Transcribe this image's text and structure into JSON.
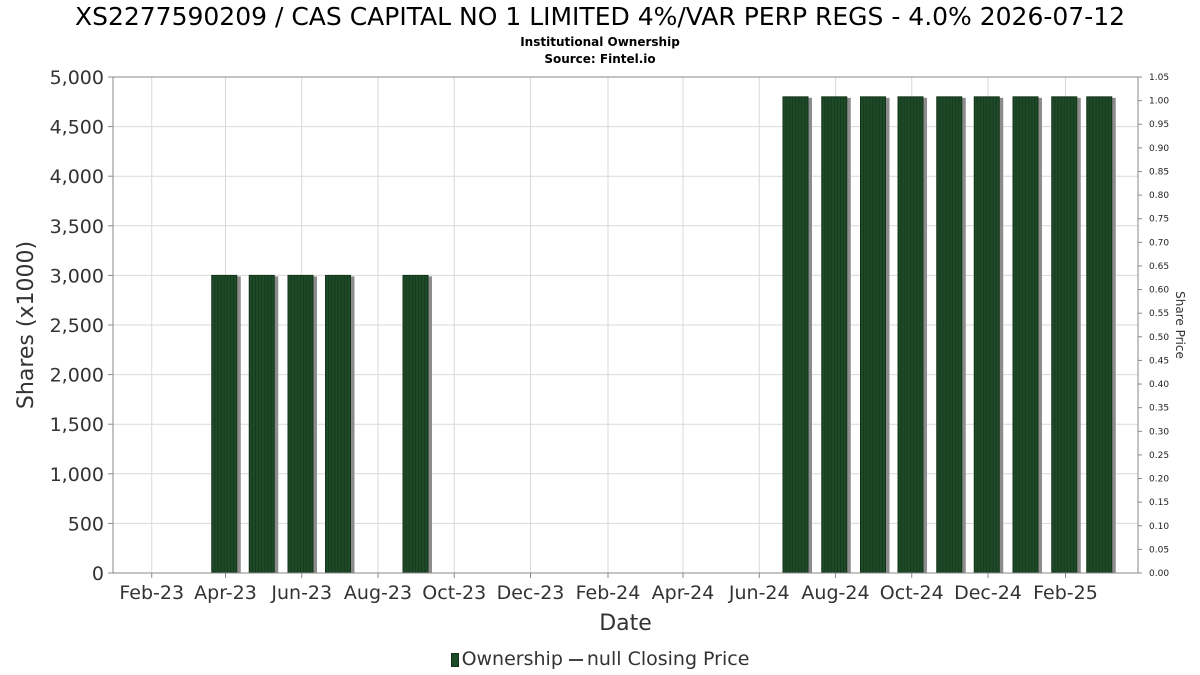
{
  "title": "XS2277590209 / CAS CAPITAL NO 1 LIMITED 4%/VAR PERP REGS - 4.0% 2026-07-12",
  "subtitle1": "Institutional Ownership",
  "subtitle2": "Source: Fintel.io",
  "legend": {
    "ownership": "Ownership",
    "closing_price": "null Closing Price"
  },
  "colors": {
    "bar": "#1f4a28",
    "bar_shadow": "#8c8c8c",
    "grid": "#d9d9d9"
  },
  "chart_data": {
    "type": "bar",
    "xlabel": "Date",
    "ylabel": "Shares (x1000)",
    "y2label": "Share Price",
    "ylim": [
      0,
      5000
    ],
    "y2lim": [
      0,
      1.05
    ],
    "grid": true,
    "legend_position": "bottom",
    "x_ticks": [
      "Feb-23",
      "Apr-23",
      "Jun-23",
      "Aug-23",
      "Oct-23",
      "Dec-23",
      "Feb-24",
      "Apr-24",
      "Jun-24",
      "Aug-24",
      "Oct-24",
      "Dec-24",
      "Feb-25"
    ],
    "y_ticks": [
      "0",
      "500",
      "1,000",
      "1,500",
      "2,000",
      "2,500",
      "3,000",
      "3,500",
      "4,000",
      "4,500",
      "5,000"
    ],
    "y2_ticks": [
      "0.00",
      "0.05",
      "0.10",
      "0.15",
      "0.20",
      "0.25",
      "0.30",
      "0.35",
      "0.40",
      "0.45",
      "0.50",
      "0.55",
      "0.60",
      "0.65",
      "0.70",
      "0.75",
      "0.80",
      "0.85",
      "0.90",
      "0.95",
      "1.00",
      "1.05"
    ],
    "series": [
      {
        "name": "Ownership",
        "x": [
          "2023-03-31",
          "2023-04-30",
          "2023-05-31",
          "2023-06-30",
          "2023-08-31",
          "2024-06-30",
          "2024-07-31",
          "2024-08-31",
          "2024-09-30",
          "2024-10-31",
          "2024-11-30",
          "2024-12-31",
          "2025-01-31",
          "2025-02-28"
        ],
        "values": [
          3000,
          3000,
          3000,
          3000,
          3000,
          4800,
          4800,
          4800,
          4800,
          4800,
          4800,
          4800,
          4800,
          4800
        ]
      }
    ]
  }
}
